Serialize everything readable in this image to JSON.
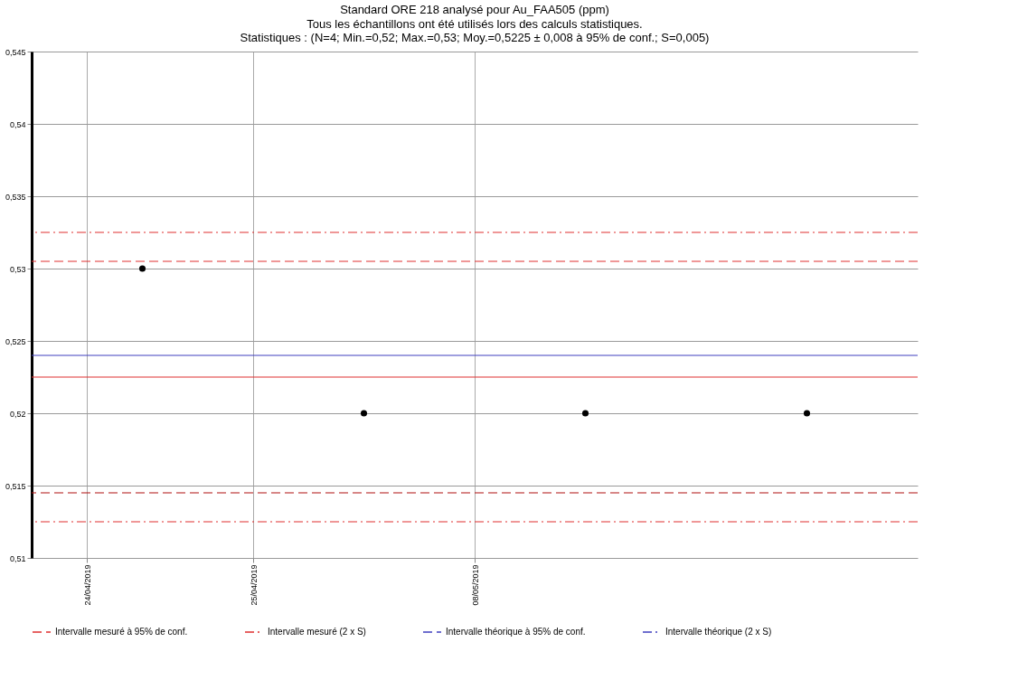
{
  "chart_data": {
    "type": "scatter",
    "title": "Standard ORE 218 analysé pour Au_FAA505 (ppm)",
    "subtitle": [
      "Tous les échantillons ont été utilisés lors des calculs statistiques.",
      "Statistiques : (N=4; Min.=0,52; Max.=0,53; Moy.=0,5225 ± 0,008 à 95% de conf.; S=0,005)"
    ],
    "categories": [
      "24/04/2019",
      null,
      null,
      "25/04/2019",
      null,
      null,
      null,
      "08/05/2019",
      null,
      null,
      null,
      null,
      null,
      null,
      null
    ],
    "series": [
      {
        "color": "#000000",
        "values": [
          null,
          0.53,
          null,
          null,
          null,
          0.52,
          null,
          null,
          null,
          0.52,
          null,
          null,
          null,
          0.52,
          null
        ]
      },
      {
        "type": "line",
        "name": "Intervalle mesuré à 95% de conf.",
        "color": "#e03030",
        "line_style": "dashed",
        "values": [
          null,
          null,
          null,
          null,
          null,
          null,
          null,
          null,
          null,
          null,
          null,
          null,
          null,
          null,
          null
        ]
      },
      {
        "type": "line",
        "name": "Intervalle mesuré (2 x S)",
        "color": "#e03030",
        "line_style": "dashdot",
        "values": [
          null,
          null,
          null,
          null,
          null,
          null,
          null,
          null,
          null,
          null,
          null,
          null,
          null,
          null,
          null
        ]
      },
      {
        "type": "line",
        "name": "Intervalle théorique à 95% de conf.",
        "color": "#4040c0",
        "line_style": "dashed",
        "values": [
          null,
          null,
          null,
          null,
          null,
          null,
          null,
          null,
          null,
          null,
          null,
          null,
          null,
          null,
          null
        ]
      },
      {
        "type": "line",
        "name": "Intervalle théorique (2 x S)",
        "color": "#4040c0",
        "line_style": "dashdot",
        "values": [
          null,
          null,
          null,
          null,
          null,
          null,
          null,
          null,
          null,
          null,
          null,
          null,
          null,
          null,
          null
        ]
      }
    ],
    "ref_lines": [
      {
        "axis": "y",
        "value": 0.5325,
        "color": "#e03030",
        "line_style": "dashdot"
      },
      {
        "axis": "y",
        "value": 0.5305,
        "color": "#e03030",
        "line_style": "dashed"
      },
      {
        "axis": "y",
        "value": 0.524,
        "color": "#4040c0",
        "line_style": "solid"
      },
      {
        "axis": "y",
        "value": 0.5225,
        "color": "#e03030",
        "line_style": "solid"
      },
      {
        "axis": "y",
        "value": 0.5145,
        "color": "#b01010",
        "line_style": "dashed"
      },
      {
        "axis": "y",
        "value": 0.5125,
        "color": "#e03030",
        "line_style": "dashdot"
      }
    ],
    "ylim": [
      0.51,
      0.545
    ],
    "yticks": [
      {
        "value": 0.51,
        "label": "0,51"
      },
      {
        "value": 0.515,
        "label": "0,515"
      },
      {
        "value": 0.52,
        "label": "0,52"
      },
      {
        "value": 0.525,
        "label": "0,525"
      },
      {
        "value": 0.53,
        "label": "0,53"
      },
      {
        "value": 0.535,
        "label": "0,535"
      },
      {
        "value": 0.54,
        "label": "0,54"
      },
      {
        "value": 0.545,
        "label": "0,545"
      }
    ],
    "grid": true,
    "legend": "bottom",
    "marker": "circle"
  }
}
